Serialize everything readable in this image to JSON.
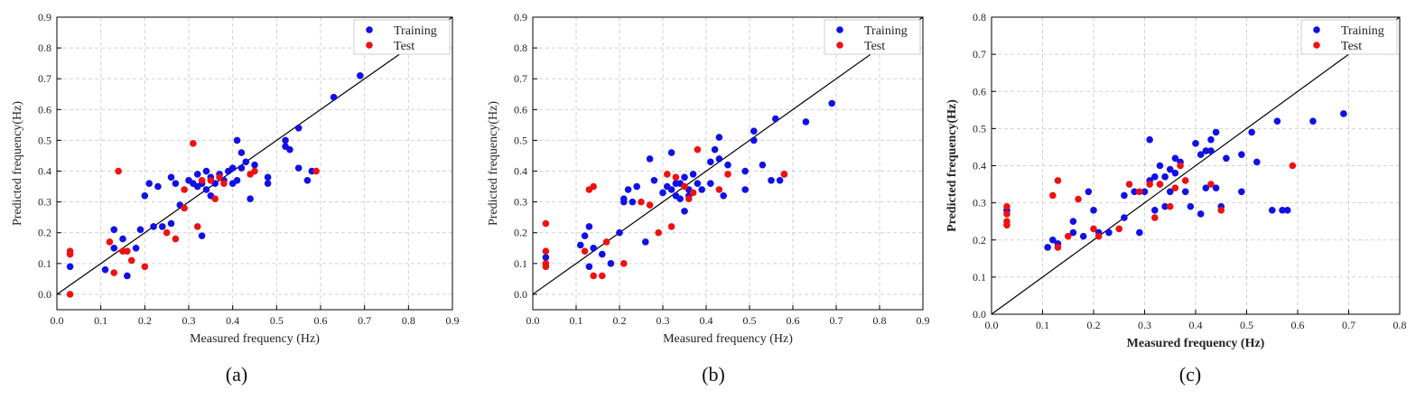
{
  "figure": {
    "colors": {
      "training": "#1010e6",
      "test": "#ee1111",
      "grid": "#d2d2d2",
      "diagonal": "#000000"
    }
  },
  "chart_data": [
    {
      "type": "scatter",
      "panel_label": "(a)",
      "title": "",
      "xlabel": "Measured frequency (Hz)",
      "ylabel": "Predicted frequency(Hz)",
      "xlim": [
        0.0,
        0.9
      ],
      "ylim": [
        -0.05,
        0.9
      ],
      "xticks": [
        "0.0",
        "0.1",
        "0.2",
        "0.3",
        "0.4",
        "0.5",
        "0.6",
        "0.7",
        "0.8",
        "0.9"
      ],
      "yticks": [
        "0.0",
        "0.1",
        "0.2",
        "0.3",
        "0.4",
        "0.5",
        "0.6",
        "0.7",
        "0.8",
        "0.9"
      ],
      "grid": true,
      "diagonal": "y = x",
      "legend_position": "top-right",
      "bold_labels": false,
      "series": [
        {
          "name": "Training",
          "color": "#1010e6",
          "points": [
            [
              0.03,
              0.09
            ],
            [
              0.11,
              0.08
            ],
            [
              0.13,
              0.15
            ],
            [
              0.13,
              0.21
            ],
            [
              0.15,
              0.18
            ],
            [
              0.16,
              0.06
            ],
            [
              0.18,
              0.15
            ],
            [
              0.19,
              0.21
            ],
            [
              0.2,
              0.32
            ],
            [
              0.21,
              0.36
            ],
            [
              0.22,
              0.22
            ],
            [
              0.23,
              0.35
            ],
            [
              0.24,
              0.22
            ],
            [
              0.26,
              0.23
            ],
            [
              0.26,
              0.38
            ],
            [
              0.27,
              0.36
            ],
            [
              0.28,
              0.29
            ],
            [
              0.3,
              0.37
            ],
            [
              0.31,
              0.36
            ],
            [
              0.32,
              0.35
            ],
            [
              0.32,
              0.39
            ],
            [
              0.33,
              0.19
            ],
            [
              0.33,
              0.36
            ],
            [
              0.34,
              0.34
            ],
            [
              0.34,
              0.4
            ],
            [
              0.35,
              0.38
            ],
            [
              0.35,
              0.32
            ],
            [
              0.36,
              0.36
            ],
            [
              0.37,
              0.39
            ],
            [
              0.38,
              0.37
            ],
            [
              0.39,
              0.4
            ],
            [
              0.4,
              0.36
            ],
            [
              0.4,
              0.41
            ],
            [
              0.41,
              0.37
            ],
            [
              0.41,
              0.5
            ],
            [
              0.42,
              0.46
            ],
            [
              0.42,
              0.41
            ],
            [
              0.43,
              0.43
            ],
            [
              0.44,
              0.31
            ],
            [
              0.45,
              0.42
            ],
            [
              0.48,
              0.36
            ],
            [
              0.48,
              0.38
            ],
            [
              0.52,
              0.5
            ],
            [
              0.52,
              0.48
            ],
            [
              0.53,
              0.47
            ],
            [
              0.55,
              0.41
            ],
            [
              0.55,
              0.54
            ],
            [
              0.57,
              0.37
            ],
            [
              0.58,
              0.4
            ],
            [
              0.63,
              0.64
            ],
            [
              0.69,
              0.71
            ]
          ]
        },
        {
          "name": "Test",
          "color": "#ee1111",
          "points": [
            [
              0.03,
              0.14
            ],
            [
              0.03,
              0.13
            ],
            [
              0.03,
              0.0
            ],
            [
              0.12,
              0.17
            ],
            [
              0.13,
              0.07
            ],
            [
              0.14,
              0.4
            ],
            [
              0.15,
              0.14
            ],
            [
              0.16,
              0.14
            ],
            [
              0.17,
              0.11
            ],
            [
              0.2,
              0.09
            ],
            [
              0.25,
              0.2
            ],
            [
              0.27,
              0.18
            ],
            [
              0.29,
              0.34
            ],
            [
              0.29,
              0.28
            ],
            [
              0.31,
              0.49
            ],
            [
              0.32,
              0.22
            ],
            [
              0.33,
              0.37
            ],
            [
              0.35,
              0.37
            ],
            [
              0.36,
              0.31
            ],
            [
              0.37,
              0.38
            ],
            [
              0.38,
              0.36
            ],
            [
              0.44,
              0.39
            ],
            [
              0.45,
              0.4
            ],
            [
              0.59,
              0.4
            ]
          ]
        }
      ]
    },
    {
      "type": "scatter",
      "panel_label": "(b)",
      "title": "",
      "xlabel": "Measured frequency (Hz)",
      "ylabel": "Predicted frequency(Hz)",
      "xlim": [
        0.0,
        0.9
      ],
      "ylim": [
        -0.05,
        0.9
      ],
      "xticks": [
        "0.0",
        "0.1",
        "0.2",
        "0.3",
        "0.4",
        "0.5",
        "0.6",
        "0.7",
        "0.8",
        "0.9"
      ],
      "yticks": [
        "0.0",
        "0.1",
        "0.2",
        "0.3",
        "0.4",
        "0.5",
        "0.6",
        "0.7",
        "0.8",
        "0.9"
      ],
      "grid": true,
      "diagonal": "y = x",
      "legend_position": "top-right",
      "bold_labels": false,
      "series": [
        {
          "name": "Training",
          "color": "#1010e6",
          "points": [
            [
              0.03,
              0.12
            ],
            [
              0.11,
              0.16
            ],
            [
              0.12,
              0.19
            ],
            [
              0.13,
              0.09
            ],
            [
              0.13,
              0.22
            ],
            [
              0.14,
              0.15
            ],
            [
              0.16,
              0.13
            ],
            [
              0.18,
              0.1
            ],
            [
              0.2,
              0.2
            ],
            [
              0.21,
              0.31
            ],
            [
              0.21,
              0.3
            ],
            [
              0.22,
              0.34
            ],
            [
              0.23,
              0.3
            ],
            [
              0.24,
              0.35
            ],
            [
              0.26,
              0.17
            ],
            [
              0.27,
              0.44
            ],
            [
              0.28,
              0.37
            ],
            [
              0.3,
              0.33
            ],
            [
              0.31,
              0.35
            ],
            [
              0.32,
              0.46
            ],
            [
              0.32,
              0.34
            ],
            [
              0.33,
              0.36
            ],
            [
              0.33,
              0.32
            ],
            [
              0.34,
              0.31
            ],
            [
              0.34,
              0.36
            ],
            [
              0.35,
              0.38
            ],
            [
              0.35,
              0.27
            ],
            [
              0.36,
              0.34
            ],
            [
              0.36,
              0.32
            ],
            [
              0.37,
              0.39
            ],
            [
              0.38,
              0.36
            ],
            [
              0.39,
              0.34
            ],
            [
              0.41,
              0.43
            ],
            [
              0.41,
              0.36
            ],
            [
              0.42,
              0.47
            ],
            [
              0.43,
              0.44
            ],
            [
              0.43,
              0.51
            ],
            [
              0.44,
              0.32
            ],
            [
              0.45,
              0.42
            ],
            [
              0.49,
              0.34
            ],
            [
              0.49,
              0.4
            ],
            [
              0.51,
              0.5
            ],
            [
              0.51,
              0.53
            ],
            [
              0.53,
              0.42
            ],
            [
              0.55,
              0.37
            ],
            [
              0.56,
              0.57
            ],
            [
              0.57,
              0.37
            ],
            [
              0.58,
              0.39
            ],
            [
              0.63,
              0.56
            ],
            [
              0.69,
              0.62
            ]
          ]
        },
        {
          "name": "Test",
          "color": "#ee1111",
          "points": [
            [
              0.03,
              0.23
            ],
            [
              0.03,
              0.14
            ],
            [
              0.03,
              0.1
            ],
            [
              0.03,
              0.09
            ],
            [
              0.12,
              0.14
            ],
            [
              0.13,
              0.34
            ],
            [
              0.14,
              0.35
            ],
            [
              0.14,
              0.06
            ],
            [
              0.16,
              0.06
            ],
            [
              0.17,
              0.17
            ],
            [
              0.21,
              0.1
            ],
            [
              0.25,
              0.3
            ],
            [
              0.27,
              0.29
            ],
            [
              0.29,
              0.2
            ],
            [
              0.31,
              0.39
            ],
            [
              0.32,
              0.22
            ],
            [
              0.33,
              0.38
            ],
            [
              0.35,
              0.35
            ],
            [
              0.36,
              0.31
            ],
            [
              0.37,
              0.33
            ],
            [
              0.38,
              0.47
            ],
            [
              0.43,
              0.34
            ],
            [
              0.45,
              0.39
            ],
            [
              0.58,
              0.39
            ]
          ]
        }
      ]
    },
    {
      "type": "scatter",
      "panel_label": "(c)",
      "title": "",
      "xlabel": "Measured frequency (Hz)",
      "ylabel": "Predicted frequency(Hz)",
      "xlim": [
        0.0,
        0.8
      ],
      "ylim": [
        0.0,
        0.8
      ],
      "xticks": [
        "0.0",
        "0.1",
        "0.2",
        "0.3",
        "0.4",
        "0.5",
        "0.6",
        "0.7",
        "0.8"
      ],
      "yticks": [
        "0.0",
        "0.1",
        "0.2",
        "0.3",
        "0.4",
        "0.5",
        "0.6",
        "0.7",
        "0.8"
      ],
      "grid": true,
      "diagonal": "y = x",
      "legend_position": "top-right",
      "bold_labels": true,
      "series": [
        {
          "name": "Training",
          "color": "#1010e6",
          "points": [
            [
              0.03,
              0.28
            ],
            [
              0.11,
              0.18
            ],
            [
              0.12,
              0.2
            ],
            [
              0.13,
              0.19
            ],
            [
              0.16,
              0.22
            ],
            [
              0.16,
              0.25
            ],
            [
              0.18,
              0.21
            ],
            [
              0.19,
              0.33
            ],
            [
              0.2,
              0.28
            ],
            [
              0.21,
              0.22
            ],
            [
              0.23,
              0.22
            ],
            [
              0.26,
              0.32
            ],
            [
              0.26,
              0.26
            ],
            [
              0.28,
              0.33
            ],
            [
              0.29,
              0.22
            ],
            [
              0.3,
              0.33
            ],
            [
              0.31,
              0.36
            ],
            [
              0.31,
              0.47
            ],
            [
              0.32,
              0.37
            ],
            [
              0.32,
              0.28
            ],
            [
              0.33,
              0.35
            ],
            [
              0.33,
              0.4
            ],
            [
              0.34,
              0.29
            ],
            [
              0.34,
              0.37
            ],
            [
              0.35,
              0.39
            ],
            [
              0.35,
              0.33
            ],
            [
              0.36,
              0.42
            ],
            [
              0.36,
              0.38
            ],
            [
              0.37,
              0.41
            ],
            [
              0.38,
              0.33
            ],
            [
              0.39,
              0.29
            ],
            [
              0.4,
              0.46
            ],
            [
              0.41,
              0.43
            ],
            [
              0.41,
              0.27
            ],
            [
              0.42,
              0.44
            ],
            [
              0.42,
              0.34
            ],
            [
              0.43,
              0.44
            ],
            [
              0.43,
              0.47
            ],
            [
              0.44,
              0.49
            ],
            [
              0.44,
              0.34
            ],
            [
              0.45,
              0.29
            ],
            [
              0.46,
              0.42
            ],
            [
              0.49,
              0.43
            ],
            [
              0.49,
              0.33
            ],
            [
              0.51,
              0.49
            ],
            [
              0.52,
              0.41
            ],
            [
              0.55,
              0.28
            ],
            [
              0.56,
              0.52
            ],
            [
              0.57,
              0.28
            ],
            [
              0.58,
              0.28
            ],
            [
              0.63,
              0.52
            ],
            [
              0.69,
              0.54
            ]
          ]
        },
        {
          "name": "Test",
          "color": "#ee1111",
          "points": [
            [
              0.03,
              0.29
            ],
            [
              0.03,
              0.27
            ],
            [
              0.03,
              0.25
            ],
            [
              0.03,
              0.24
            ],
            [
              0.12,
              0.32
            ],
            [
              0.13,
              0.36
            ],
            [
              0.13,
              0.18
            ],
            [
              0.15,
              0.21
            ],
            [
              0.17,
              0.31
            ],
            [
              0.2,
              0.23
            ],
            [
              0.21,
              0.21
            ],
            [
              0.25,
              0.23
            ],
            [
              0.27,
              0.35
            ],
            [
              0.29,
              0.33
            ],
            [
              0.31,
              0.35
            ],
            [
              0.32,
              0.26
            ],
            [
              0.33,
              0.35
            ],
            [
              0.35,
              0.29
            ],
            [
              0.36,
              0.34
            ],
            [
              0.37,
              0.4
            ],
            [
              0.38,
              0.36
            ],
            [
              0.43,
              0.35
            ],
            [
              0.45,
              0.28
            ],
            [
              0.59,
              0.4
            ]
          ]
        }
      ]
    }
  ]
}
